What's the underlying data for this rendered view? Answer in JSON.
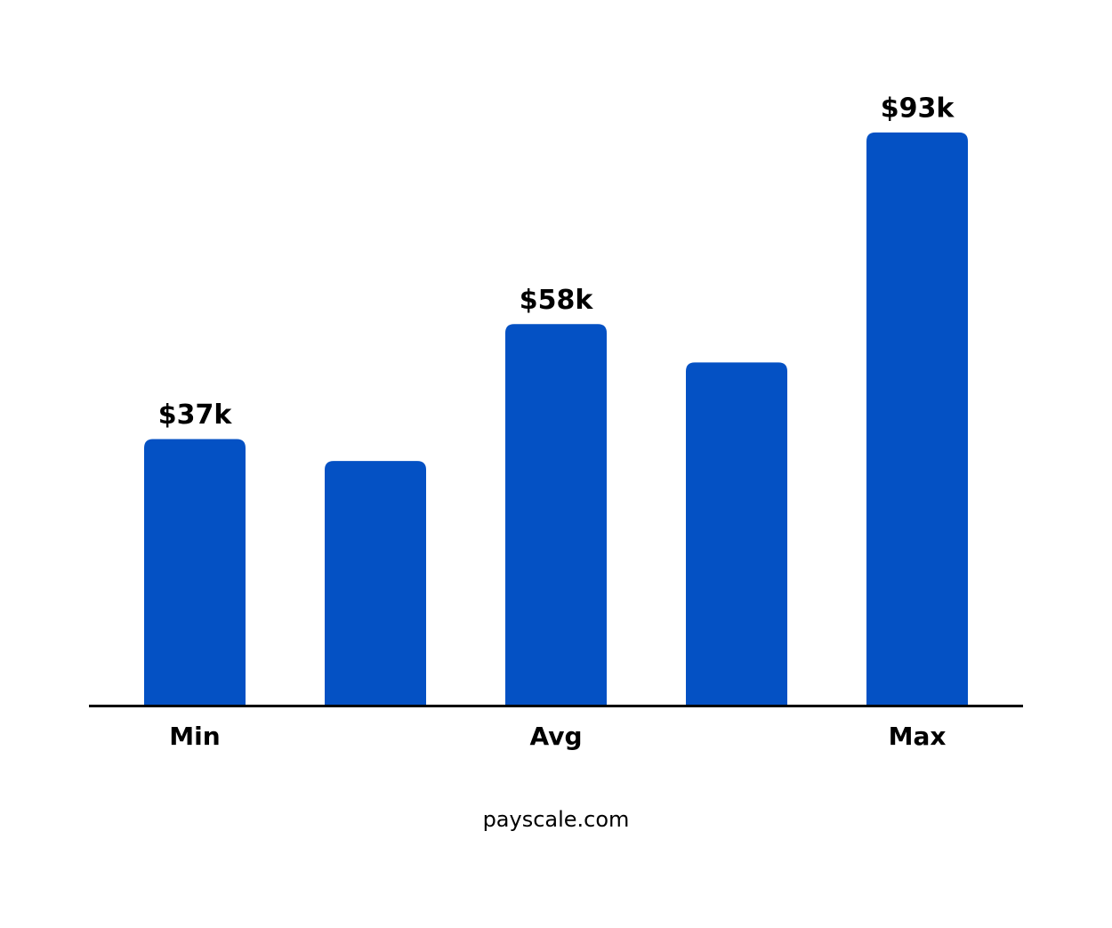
{
  "chart_data": {
    "type": "bar",
    "categories": [
      "Min",
      null,
      "Avg",
      null,
      "Max"
    ],
    "values": [
      37,
      33,
      58,
      51,
      93
    ],
    "value_labels": [
      "$37k",
      null,
      "$58k",
      null,
      "$93k"
    ],
    "color": "#0451c4",
    "ylim": [
      -11.5,
      105
    ],
    "source": "payscale.com"
  }
}
